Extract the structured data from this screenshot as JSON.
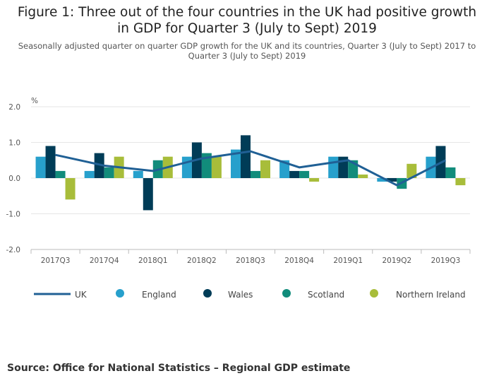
{
  "header": {
    "title": "Figure 1: Three out of the four countries in the UK had positive growth in GDP for Quarter 3 (July to Sept) 2019",
    "subtitle": "Seasonally adjusted quarter on quarter GDP growth for the UK and its countries, Quarter 3 (July to Sept) 2017 to Quarter 3 (July to Sept) 2019"
  },
  "source": "Source: Office for National Statistics – Regional GDP estimate",
  "colors": {
    "UK": "#206095",
    "England": "#27a0cc",
    "Wales": "#003c57",
    "Scotland": "#118c7b",
    "Northern Ireland": "#a8bd3a",
    "grid": "#e6e6e6",
    "axis": "#bbbbbb"
  },
  "chart_data": {
    "type": "bar",
    "title": "Figure 1: Three out of the four countries in the UK had positive growth in GDP for Quarter 3 (July to Sept) 2019",
    "ylabel": "%",
    "xlabel": "",
    "ylim": [
      -2.0,
      2.0
    ],
    "yticks": [
      "2.0",
      "1.0",
      "0.0",
      "-1.0",
      "-2.0"
    ],
    "ytick_values": [
      2.0,
      1.0,
      0.0,
      -1.0,
      -2.0
    ],
    "grid": true,
    "legend": "bottom",
    "categories": [
      "2017Q3",
      "2017Q4",
      "2018Q1",
      "2018Q2",
      "2018Q3",
      "2018Q4",
      "2019Q1",
      "2019Q2",
      "2019Q3"
    ],
    "series": [
      {
        "name": "England",
        "kind": "bar",
        "values": [
          0.6,
          0.2,
          0.2,
          0.6,
          0.8,
          0.5,
          0.6,
          -0.1,
          0.6
        ]
      },
      {
        "name": "Wales",
        "kind": "bar",
        "values": [
          0.9,
          0.7,
          -0.9,
          1.0,
          1.2,
          0.2,
          0.6,
          -0.1,
          0.9
        ]
      },
      {
        "name": "Scotland",
        "kind": "bar",
        "values": [
          0.2,
          0.3,
          0.5,
          0.7,
          0.2,
          0.2,
          0.5,
          -0.3,
          0.3
        ]
      },
      {
        "name": "Northern Ireland",
        "kind": "bar",
        "values": [
          -0.6,
          0.6,
          0.6,
          0.6,
          0.5,
          -0.1,
          0.1,
          0.4,
          -0.2
        ]
      },
      {
        "name": "UK",
        "kind": "line",
        "values": [
          0.65,
          0.35,
          0.2,
          0.55,
          0.75,
          0.3,
          0.5,
          -0.2,
          0.5
        ]
      }
    ],
    "legend_items": [
      "UK",
      "England",
      "Wales",
      "Scotland",
      "Northern Ireland"
    ]
  }
}
